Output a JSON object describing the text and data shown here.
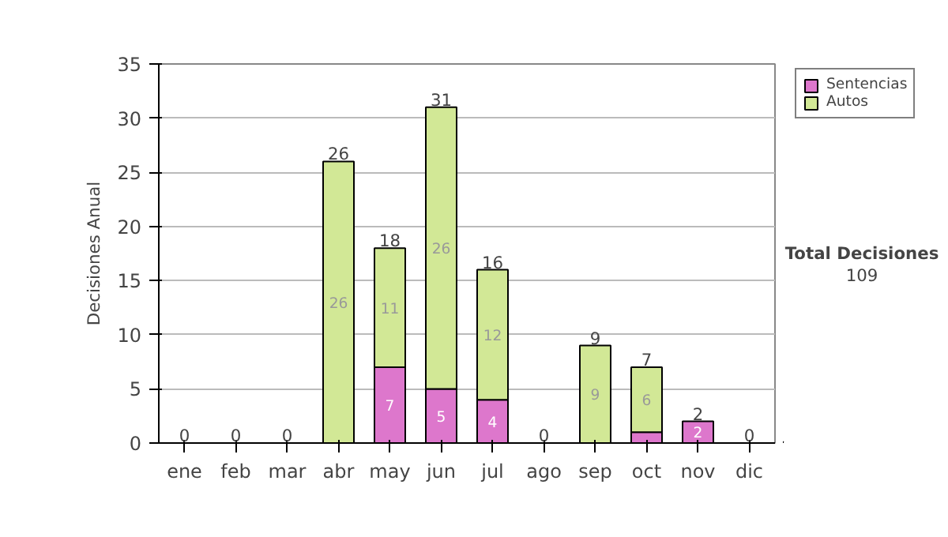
{
  "chart_data": {
    "type": "bar",
    "stacked": true,
    "ylabel": "Decisiones Anual",
    "categories": [
      "ene",
      "feb",
      "mar",
      "abr",
      "may",
      "jun",
      "jul",
      "ago",
      "sep",
      "oct",
      "nov",
      "dic"
    ],
    "series": [
      {
        "name": "Sentencias",
        "color": "#dd77cc",
        "values": [
          0,
          0,
          0,
          0,
          7,
          5,
          4,
          0,
          0,
          1,
          2,
          0
        ],
        "value_labels": [
          null,
          null,
          null,
          null,
          "7",
          "5",
          "4",
          null,
          null,
          null,
          "2",
          null
        ]
      },
      {
        "name": "Autos",
        "color": "#d2e896",
        "values": [
          0,
          0,
          0,
          26,
          11,
          26,
          12,
          0,
          9,
          6,
          0,
          0
        ],
        "value_labels": [
          null,
          null,
          null,
          "26",
          "11",
          "26",
          "12",
          null,
          "9",
          "6",
          null,
          null
        ]
      }
    ],
    "totals": [
      "0",
      "0",
      "0",
      "26",
      "18",
      "31",
      "16",
      "0",
      "9",
      "7",
      "2",
      "0"
    ],
    "ylim": [
      0,
      35
    ],
    "yticks": [
      0,
      5,
      10,
      15,
      20,
      25,
      30,
      35
    ],
    "grid": "y",
    "legend": "right",
    "annotations": [
      "Total Decisiones",
      "109"
    ]
  }
}
